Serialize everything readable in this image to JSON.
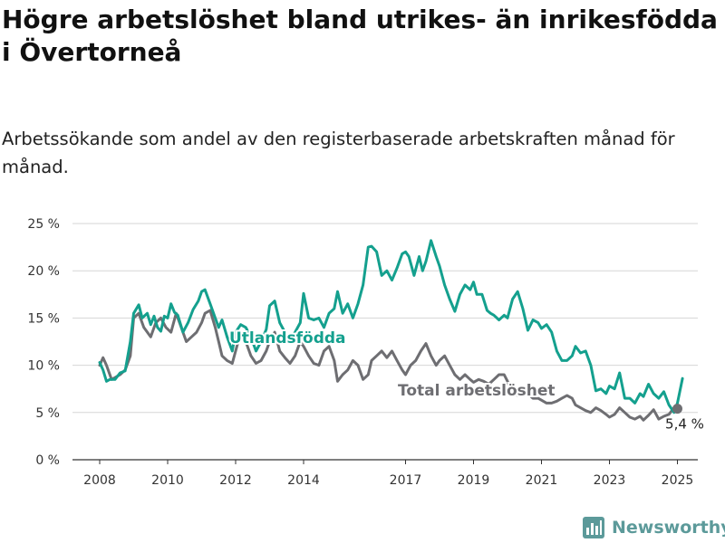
{
  "title": "Högre arbetslöshet bland utrikes- än inrikesfödda i Övertorneå",
  "subtitle": "Arbetssökande som andel av den registerbaserade arbetskraften månad för månad.",
  "brand": {
    "name": "Newsworthy",
    "icon": "bar-chart-icon"
  },
  "colors": {
    "foreign_born": "#14a08e",
    "total": "#6e6e72",
    "grid": "#d6d6d6",
    "axis": "#333333"
  },
  "chart_data": {
    "type": "line",
    "x_type": "year",
    "xlim": [
      2008,
      2025.7
    ],
    "ylim": [
      0,
      25
    ],
    "y_ticks": [
      {
        "value": 0,
        "label": "0 %"
      },
      {
        "value": 5,
        "label": "5 %"
      },
      {
        "value": 10,
        "label": "10 %"
      },
      {
        "value": 15,
        "label": "15 %"
      },
      {
        "value": 20,
        "label": "20 %"
      },
      {
        "value": 25,
        "label": "25 %"
      }
    ],
    "x_ticks": [
      {
        "value": 2008,
        "label": "2008"
      },
      {
        "value": 2010,
        "label": "2010"
      },
      {
        "value": 2012,
        "label": "2012"
      },
      {
        "value": 2014,
        "label": "2014"
      },
      {
        "value": 2017,
        "label": "2017"
      },
      {
        "value": 2019,
        "label": "2019"
      },
      {
        "value": 2021,
        "label": "2021"
      },
      {
        "value": 2023,
        "label": "2023"
      },
      {
        "value": 2025,
        "label": "2025"
      }
    ],
    "grid": true,
    "legend": "inline labels",
    "end_label": "5,4 %",
    "series": [
      {
        "name": "Utlandsfödda",
        "x": [
          2008.0,
          2008.1,
          2008.2,
          2008.3,
          2008.45,
          2008.6,
          2008.75,
          2008.9,
          2009.0,
          2009.15,
          2009.25,
          2009.4,
          2009.5,
          2009.6,
          2009.7,
          2009.8,
          2009.9,
          2010.0,
          2010.1,
          2010.2,
          2010.3,
          2010.45,
          2010.6,
          2010.75,
          2010.9,
          2011.0,
          2011.1,
          2011.25,
          2011.4,
          2011.5,
          2011.6,
          2011.75,
          2011.9,
          2012.0,
          2012.15,
          2012.3,
          2012.45,
          2012.6,
          2012.75,
          2012.9,
          2013.0,
          2013.15,
          2013.3,
          2013.45,
          2013.6,
          2013.75,
          2013.9,
          2014.0,
          2014.15,
          2014.3,
          2014.45,
          2014.6,
          2014.75,
          2014.9,
          2015.0,
          2015.15,
          2015.3,
          2015.45,
          2015.6,
          2015.75,
          2015.9,
          2016.0,
          2016.15,
          2016.3,
          2016.45,
          2016.6,
          2016.75,
          2016.9,
          2017.0,
          2017.1,
          2017.25,
          2017.4,
          2017.5,
          2017.6,
          2017.75,
          2017.9,
          2018.0,
          2018.15,
          2018.3,
          2018.45,
          2018.6,
          2018.75,
          2018.9,
          2019.0,
          2019.1,
          2019.25,
          2019.4,
          2019.5,
          2019.6,
          2019.75,
          2019.9,
          2020.0,
          2020.15,
          2020.3,
          2020.45,
          2020.6,
          2020.75,
          2020.9,
          2021.0,
          2021.15,
          2021.3,
          2021.45,
          2021.6,
          2021.75,
          2021.9,
          2022.0,
          2022.15,
          2022.3,
          2022.45,
          2022.6,
          2022.75,
          2022.9,
          2023.0,
          2023.15,
          2023.3,
          2023.45,
          2023.6,
          2023.75,
          2023.9,
          2024.0,
          2024.15,
          2024.3,
          2024.45,
          2024.6,
          2024.75,
          2024.9,
          2025.0,
          2025.15
        ],
        "y": [
          10.3,
          9.5,
          8.3,
          8.5,
          8.5,
          9.2,
          9.4,
          12.5,
          15.5,
          16.4,
          15.0,
          15.5,
          14.3,
          15.2,
          14.0,
          13.6,
          15.2,
          15.0,
          16.5,
          15.6,
          15.3,
          13.5,
          14.5,
          15.9,
          16.8,
          17.8,
          18.0,
          16.5,
          15.0,
          14.0,
          14.8,
          13.0,
          11.5,
          13.5,
          14.3,
          14.0,
          13.0,
          11.5,
          12.5,
          13.8,
          16.3,
          16.8,
          14.5,
          13.5,
          12.5,
          13.5,
          14.5,
          17.6,
          15.0,
          14.8,
          15.0,
          14.0,
          15.5,
          16.0,
          17.8,
          15.5,
          16.5,
          15.0,
          16.5,
          18.5,
          22.5,
          22.6,
          22.0,
          19.5,
          20.0,
          19.0,
          20.3,
          21.8,
          22.0,
          21.5,
          19.5,
          21.5,
          20.0,
          21.0,
          23.2,
          21.5,
          20.5,
          18.5,
          17.0,
          15.7,
          17.5,
          18.5,
          18.0,
          18.8,
          17.5,
          17.5,
          15.8,
          15.5,
          15.3,
          14.8,
          15.3,
          15.0,
          17.0,
          17.8,
          16.0,
          13.7,
          14.8,
          14.5,
          13.9,
          14.3,
          13.5,
          11.5,
          10.5,
          10.5,
          11.0,
          12.0,
          11.3,
          11.5,
          10.0,
          7.3,
          7.5,
          7.0,
          7.8,
          7.5,
          9.2,
          6.5,
          6.5,
          6.0,
          7.0,
          6.7,
          8.0,
          7.0,
          6.5,
          7.2,
          5.8,
          5.0,
          6.0,
          8.6
        ],
        "color": "#14a08e"
      },
      {
        "name": "Total arbetslöshet",
        "x": [
          2008.0,
          2008.1,
          2008.2,
          2008.35,
          2008.5,
          2008.6,
          2008.75,
          2008.9,
          2009.0,
          2009.15,
          2009.3,
          2009.5,
          2009.65,
          2009.8,
          2009.95,
          2010.1,
          2010.25,
          2010.4,
          2010.55,
          2010.7,
          2010.85,
          2011.0,
          2011.1,
          2011.25,
          2011.4,
          2011.5,
          2011.6,
          2011.75,
          2011.9,
          2012.0,
          2012.15,
          2012.3,
          2012.45,
          2012.6,
          2012.75,
          2012.9,
          2013.0,
          2013.15,
          2013.3,
          2013.45,
          2013.6,
          2013.75,
          2013.9,
          2014.0,
          2014.15,
          2014.3,
          2014.45,
          2014.6,
          2014.75,
          2014.9,
          2015.0,
          2015.15,
          2015.3,
          2015.45,
          2015.6,
          2015.75,
          2015.9,
          2016.0,
          2016.15,
          2016.3,
          2016.45,
          2016.6,
          2016.75,
          2016.9,
          2017.0,
          2017.15,
          2017.3,
          2017.45,
          2017.6,
          2017.75,
          2017.9,
          2018.0,
          2018.15,
          2018.3,
          2018.45,
          2018.6,
          2018.75,
          2018.9,
          2019.0,
          2019.15,
          2019.3,
          2019.45,
          2019.6,
          2019.75,
          2019.9,
          2020.0,
          2020.15,
          2020.3,
          2020.45,
          2020.6,
          2020.75,
          2020.9,
          2021.0,
          2021.15,
          2021.3,
          2021.45,
          2021.6,
          2021.75,
          2021.9,
          2022.0,
          2022.15,
          2022.3,
          2022.45,
          2022.6,
          2022.75,
          2022.9,
          2023.0,
          2023.15,
          2023.3,
          2023.45,
          2023.6,
          2023.75,
          2023.9,
          2024.0,
          2024.15,
          2024.3,
          2024.45,
          2024.6,
          2024.75,
          2024.9,
          2025.0
        ],
        "y": [
          10.0,
          10.8,
          10.0,
          8.5,
          8.8,
          9.0,
          9.5,
          11.0,
          15.0,
          15.5,
          14.0,
          13.0,
          14.5,
          15.0,
          14.0,
          13.5,
          15.5,
          14.0,
          12.5,
          13.0,
          13.5,
          14.5,
          15.5,
          15.8,
          14.0,
          12.5,
          11.0,
          10.5,
          10.2,
          11.5,
          13.5,
          12.5,
          11.0,
          10.2,
          10.5,
          11.5,
          12.5,
          13.5,
          11.5,
          10.8,
          10.2,
          11.0,
          12.5,
          12.0,
          11.0,
          10.2,
          10.0,
          11.5,
          12.0,
          10.5,
          8.3,
          9.0,
          9.5,
          10.5,
          10.0,
          8.5,
          9.0,
          10.5,
          11.0,
          11.5,
          10.8,
          11.5,
          10.5,
          9.5,
          9.0,
          10.0,
          10.5,
          11.5,
          12.3,
          11.0,
          10.0,
          10.5,
          11.0,
          10.0,
          9.0,
          8.5,
          9.0,
          8.5,
          8.2,
          8.5,
          8.3,
          8.0,
          8.5,
          9.0,
          9.0,
          8.3,
          7.0,
          6.8,
          7.0,
          7.0,
          6.5,
          6.5,
          6.3,
          6.0,
          6.0,
          6.2,
          6.5,
          6.8,
          6.5,
          5.8,
          5.5,
          5.2,
          5.0,
          5.5,
          5.2,
          4.8,
          4.5,
          4.8,
          5.5,
          5.0,
          4.5,
          4.3,
          4.6,
          4.2,
          4.7,
          5.3,
          4.3,
          4.6,
          4.8,
          5.5,
          5.4
        ],
        "color": "#6e6e72"
      }
    ]
  }
}
